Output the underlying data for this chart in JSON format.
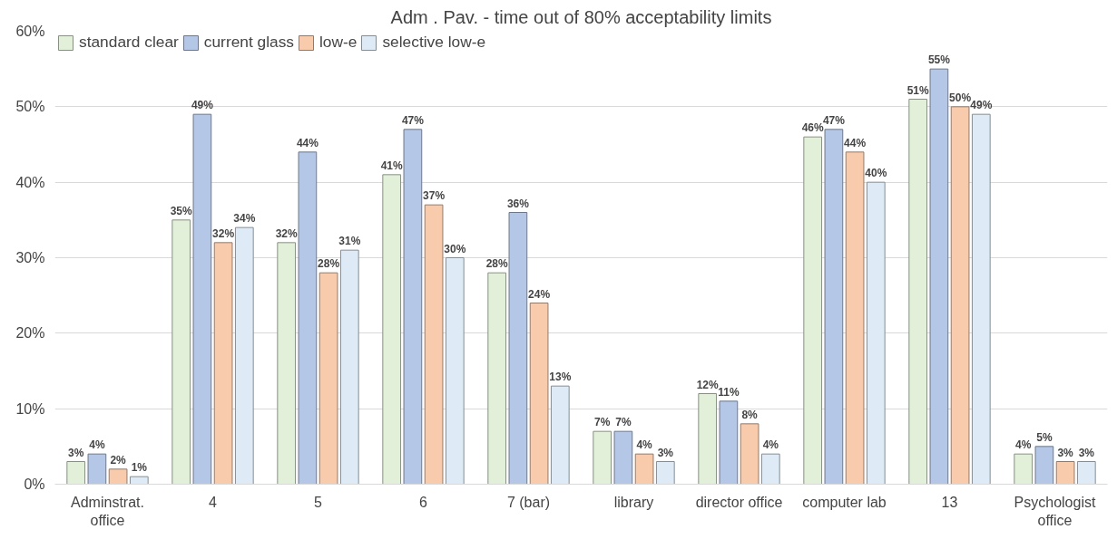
{
  "chart_data": {
    "type": "bar",
    "title": "Adm . Pav. - time out of 80% acceptability limits",
    "categories": [
      "Adminstrat.\noffice",
      "4",
      "5",
      "6",
      "7 (bar)",
      "library",
      "director office",
      "computer lab",
      "13",
      "Psychologist\noffice"
    ],
    "series": [
      {
        "name": "standard clear",
        "color": "#e2f0d9",
        "values": [
          3,
          35,
          32,
          41,
          28,
          7,
          12,
          46,
          51,
          4
        ],
        "value_labels": [
          "3%",
          "35%",
          "32%",
          "41%",
          "28%",
          "7%",
          "12%",
          "46%",
          "51%",
          "4%"
        ]
      },
      {
        "name": "current glass",
        "color": "#b4c7e7",
        "values": [
          4,
          49,
          44,
          47,
          36,
          7,
          11,
          47,
          55,
          5
        ],
        "value_labels": [
          "4%",
          "49%",
          "44%",
          "47%",
          "36%",
          "7%",
          "11%",
          "47%",
          "55%",
          "5%"
        ]
      },
      {
        "name": "low-e",
        "color": "#f8cbad",
        "values": [
          2,
          32,
          28,
          37,
          24,
          4,
          8,
          44,
          50,
          3
        ],
        "value_labels": [
          "2%",
          "32%",
          "28%",
          "37%",
          "24%",
          "4%",
          "8%",
          "44%",
          "50%",
          "3%"
        ]
      },
      {
        "name": "selective low-e",
        "color": "#deebf7",
        "values": [
          1,
          34,
          31,
          30,
          13,
          3,
          4,
          40,
          49,
          3
        ],
        "value_labels": [
          "1%",
          "34%",
          "31%",
          "30%",
          "13%",
          "3%",
          "4%",
          "40%",
          "49%",
          "3%"
        ]
      }
    ],
    "ylim": [
      0,
      60
    ],
    "yticks": [
      {
        "value": 0,
        "label": "0%"
      },
      {
        "value": 10,
        "label": "10%"
      },
      {
        "value": 20,
        "label": "20%"
      },
      {
        "value": 30,
        "label": "30%"
      },
      {
        "value": 40,
        "label": "40%"
      },
      {
        "value": 50,
        "label": "50%"
      },
      {
        "value": 60,
        "label": "60%"
      }
    ],
    "grid": "y",
    "legend": "top left"
  }
}
